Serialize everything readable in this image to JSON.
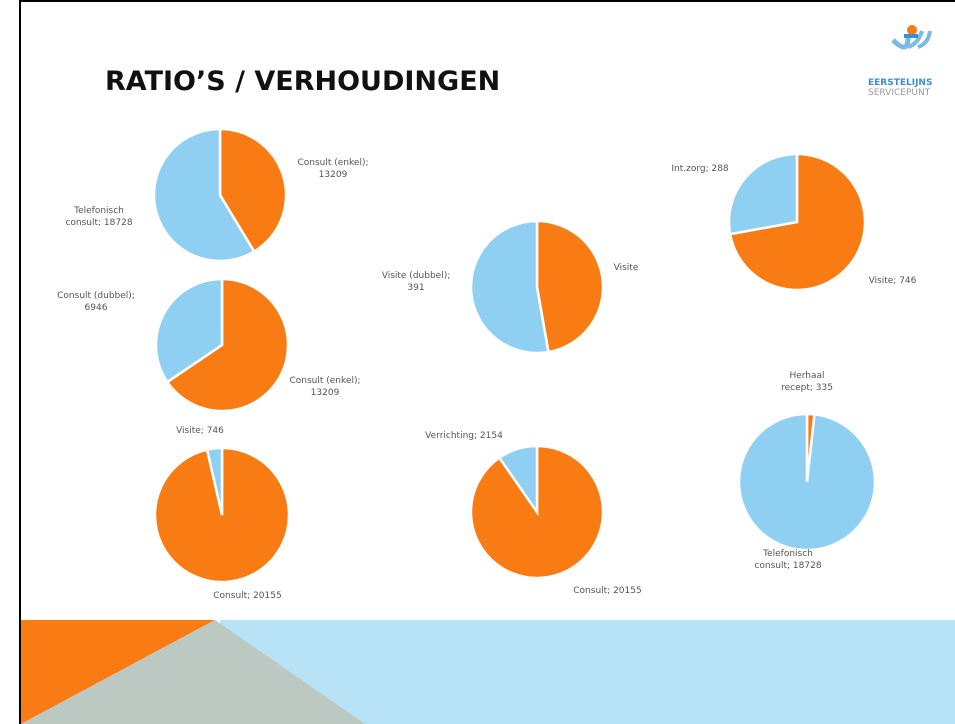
{
  "slide": {
    "title": "RATIO’S / VERHOUDINGEN",
    "logo": [
      "EERSTELIJNS",
      "SERVICEPUNT"
    ]
  },
  "chart_data": [
    {
      "type": "pie",
      "categories": [
        "Consult (enkel); 13209",
        "Telefonisch consult; 18728"
      ],
      "values": [
        13209,
        18728
      ],
      "colors": [
        "#f97b14",
        "#8fd0f2"
      ]
    },
    {
      "type": "pie",
      "categories": [
        "Consult (enkel); 13209",
        "Consult (dubbel); 6946"
      ],
      "values": [
        13209,
        6946
      ],
      "colors": [
        "#f97b14",
        "#8fd0f2"
      ]
    },
    {
      "type": "pie",
      "categories": [
        "Consult; 20155",
        "Visite; 746"
      ],
      "values": [
        20155,
        746
      ],
      "colors": [
        "#f97b14",
        "#8fd0f2"
      ]
    },
    {
      "type": "pie",
      "categories": [
        "Visite",
        "Visite (dubbel); 391"
      ],
      "values": [
        350,
        391
      ],
      "colors": [
        "#f97b14",
        "#8fd0f2"
      ]
    },
    {
      "type": "pie",
      "categories": [
        "Consult; 20155",
        "Verrichting; 2154"
      ],
      "values": [
        20155,
        2154
      ],
      "colors": [
        "#f97b14",
        "#8fd0f2"
      ]
    },
    {
      "type": "pie",
      "categories": [
        "Visite; 746",
        "Int.zorg; 288"
      ],
      "values": [
        746,
        288
      ],
      "colors": [
        "#f97b14",
        "#8fd0f2"
      ]
    },
    {
      "type": "pie",
      "categories": [
        "Herhaal recept; 335",
        "Telefonisch consult; 18728"
      ],
      "values": [
        335,
        18728
      ],
      "colors": [
        "#f97b14",
        "#8fd0f2"
      ]
    }
  ]
}
